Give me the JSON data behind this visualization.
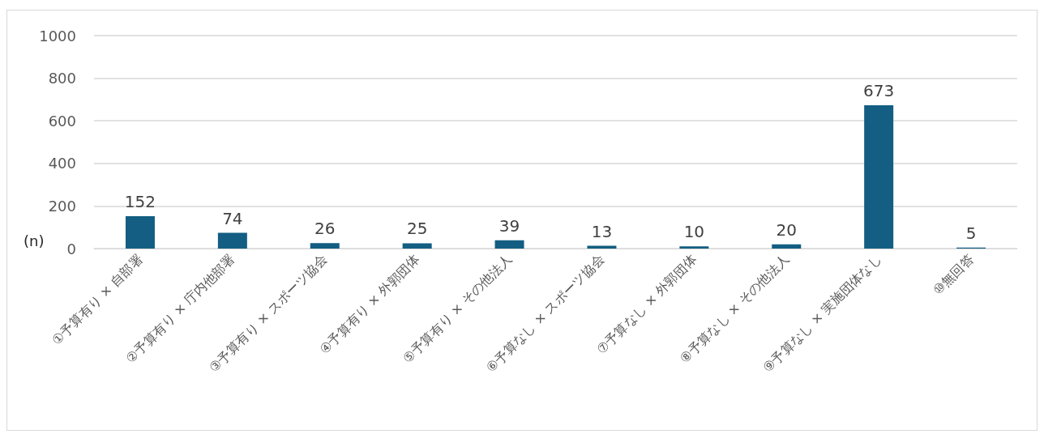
{
  "chart_data": {
    "type": "bar",
    "ylabel": "(n)",
    "categories": [
      "①予算有り × 自部署",
      "②予算有り × 庁内他部署",
      "③予算有り × スポーツ協会",
      "④予算有り × 外郭団体",
      "⑤予算有り × その他法人",
      "⑥予算なし × スポーツ協会",
      "⑦予算なし × 外郭団体",
      "⑧予算なし × その他法人",
      "⑨予算なし × 実施団体なし",
      "⑩無回答"
    ],
    "values": [
      152,
      74,
      26,
      25,
      39,
      13,
      10,
      20,
      673,
      5
    ],
    "color": "#135e82",
    "ylim": [
      0,
      1000
    ],
    "yticks": [
      0,
      200,
      400,
      600,
      800,
      1000
    ],
    "grid": "y",
    "data_labels": true
  }
}
